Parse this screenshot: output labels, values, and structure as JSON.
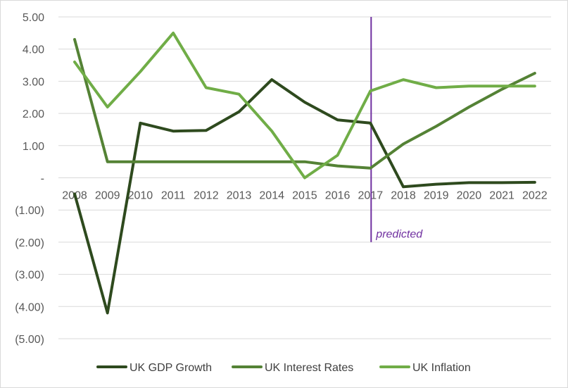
{
  "chart_data": {
    "type": "line",
    "title": "",
    "xlabel": "",
    "ylabel": "",
    "categories": [
      "2008",
      "2009",
      "2010",
      "2011",
      "2012",
      "2013",
      "2014",
      "2015",
      "2016",
      "2017",
      "2018",
      "2019",
      "2020",
      "2021",
      "2022"
    ],
    "ylim": [
      -5,
      5
    ],
    "y_ticks": [
      {
        "value": 5,
        "label": "5.00"
      },
      {
        "value": 4,
        "label": "4.00"
      },
      {
        "value": 3,
        "label": "3.00"
      },
      {
        "value": 2,
        "label": "2.00"
      },
      {
        "value": 1,
        "label": "1.00"
      },
      {
        "value": 0,
        "label": "-"
      },
      {
        "value": -1,
        "label": "(1.00)"
      },
      {
        "value": -2,
        "label": "(2.00)"
      },
      {
        "value": -3,
        "label": "(3.00)"
      },
      {
        "value": -4,
        "label": "(4.00)"
      },
      {
        "value": -5,
        "label": "(5.00)"
      }
    ],
    "grid": true,
    "legend_position": "bottom",
    "series": [
      {
        "name": "UK GDP Growth",
        "color": "#2e4a1e",
        "values": [
          -0.5,
          -4.2,
          1.7,
          1.45,
          1.47,
          2.05,
          3.05,
          2.35,
          1.8,
          1.7,
          -0.28,
          -0.2,
          -0.15,
          -0.15,
          -0.14
        ]
      },
      {
        "name": "UK Interest Rates",
        "color": "#548235",
        "values": [
          4.3,
          0.5,
          0.5,
          0.5,
          0.5,
          0.5,
          0.5,
          0.5,
          0.37,
          0.3,
          1.05,
          1.6,
          2.2,
          2.75,
          3.25
        ]
      },
      {
        "name": "UK Inflation",
        "color": "#70ad47",
        "values": [
          3.6,
          2.2,
          3.3,
          4.5,
          2.8,
          2.6,
          1.45,
          0.0,
          0.7,
          2.7,
          3.05,
          2.8,
          2.85,
          2.85,
          2.85
        ]
      }
    ],
    "annotation": {
      "text": "predicted",
      "at_category": "2017",
      "color": "#7030a0",
      "y_from": 5,
      "y_to": -2
    }
  }
}
